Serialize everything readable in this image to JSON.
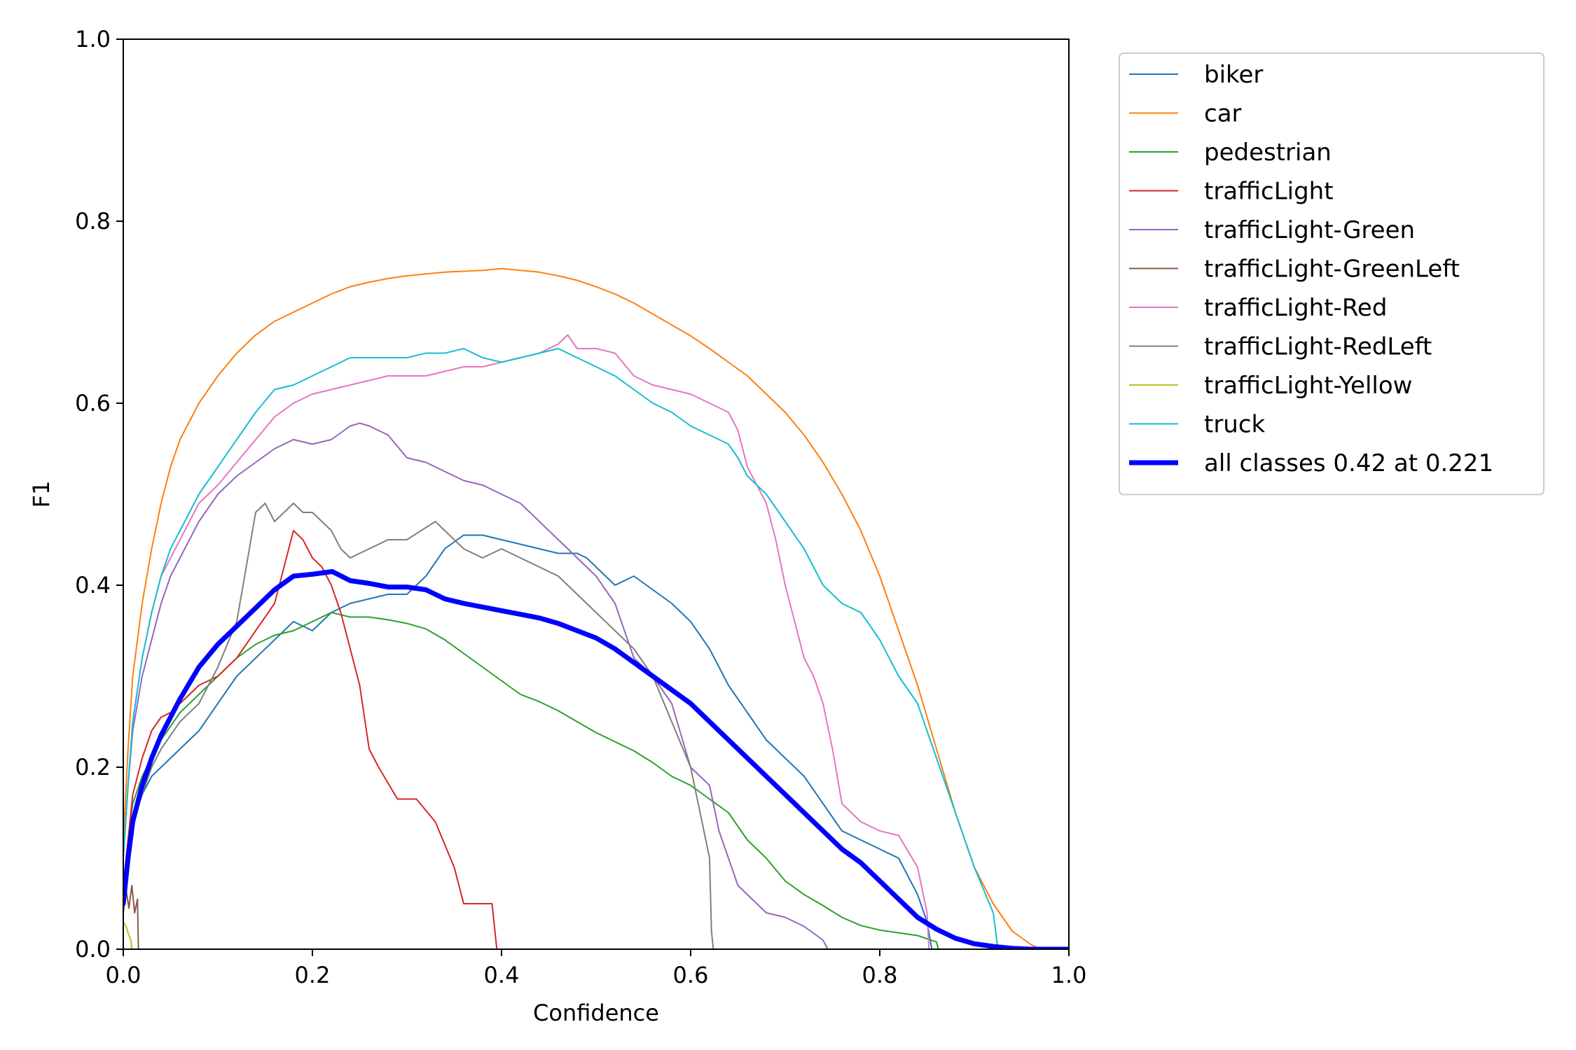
{
  "chart_data": {
    "type": "line",
    "title": "",
    "xlabel": "Confidence",
    "ylabel": "F1",
    "xlim": [
      0,
      1
    ],
    "ylim": [
      0,
      1
    ],
    "xticks": [
      "0.0",
      "0.2",
      "0.4",
      "0.6",
      "0.8",
      "1.0"
    ],
    "yticks": [
      "0.0",
      "0.2",
      "0.4",
      "0.6",
      "0.8",
      "1.0"
    ],
    "grid": false,
    "legend_position": "outside-right",
    "series": [
      {
        "name": "biker",
        "color": "#1f77b4",
        "width": 2,
        "x": [
          0.0,
          0.005,
          0.01,
          0.02,
          0.03,
          0.04,
          0.05,
          0.06,
          0.08,
          0.1,
          0.12,
          0.14,
          0.16,
          0.18,
          0.2,
          0.22,
          0.24,
          0.26,
          0.28,
          0.3,
          0.32,
          0.34,
          0.36,
          0.38,
          0.4,
          0.42,
          0.44,
          0.46,
          0.48,
          0.49,
          0.52,
          0.54,
          0.56,
          0.58,
          0.6,
          0.62,
          0.64,
          0.66,
          0.68,
          0.7,
          0.72,
          0.74,
          0.76,
          0.78,
          0.8,
          0.82,
          0.84,
          0.85,
          0.855
        ],
        "y": [
          0.07,
          0.11,
          0.14,
          0.17,
          0.19,
          0.2,
          0.21,
          0.22,
          0.24,
          0.27,
          0.3,
          0.32,
          0.34,
          0.36,
          0.35,
          0.37,
          0.38,
          0.385,
          0.39,
          0.39,
          0.41,
          0.44,
          0.455,
          0.455,
          0.45,
          0.445,
          0.44,
          0.435,
          0.435,
          0.43,
          0.4,
          0.41,
          0.395,
          0.38,
          0.36,
          0.33,
          0.29,
          0.26,
          0.23,
          0.21,
          0.19,
          0.16,
          0.13,
          0.12,
          0.11,
          0.1,
          0.06,
          0.03,
          0.0
        ]
      },
      {
        "name": "car",
        "color": "#ff7f0e",
        "width": 2,
        "x": [
          0.0,
          0.005,
          0.01,
          0.02,
          0.03,
          0.04,
          0.05,
          0.06,
          0.08,
          0.1,
          0.12,
          0.14,
          0.16,
          0.18,
          0.2,
          0.22,
          0.24,
          0.26,
          0.28,
          0.3,
          0.32,
          0.34,
          0.36,
          0.38,
          0.4,
          0.42,
          0.44,
          0.46,
          0.48,
          0.5,
          0.52,
          0.54,
          0.56,
          0.58,
          0.6,
          0.62,
          0.64,
          0.66,
          0.68,
          0.7,
          0.72,
          0.74,
          0.76,
          0.78,
          0.8,
          0.82,
          0.84,
          0.86,
          0.88,
          0.9,
          0.92,
          0.94,
          0.96,
          0.97,
          1.0
        ],
        "y": [
          0.12,
          0.22,
          0.3,
          0.38,
          0.44,
          0.49,
          0.53,
          0.56,
          0.6,
          0.63,
          0.655,
          0.675,
          0.69,
          0.7,
          0.71,
          0.72,
          0.728,
          0.733,
          0.737,
          0.74,
          0.742,
          0.744,
          0.745,
          0.746,
          0.748,
          0.746,
          0.744,
          0.74,
          0.735,
          0.728,
          0.72,
          0.71,
          0.698,
          0.686,
          0.674,
          0.66,
          0.645,
          0.63,
          0.61,
          0.59,
          0.565,
          0.535,
          0.5,
          0.46,
          0.41,
          0.35,
          0.29,
          0.22,
          0.15,
          0.09,
          0.05,
          0.02,
          0.005,
          0.0,
          0.0
        ]
      },
      {
        "name": "pedestrian",
        "color": "#2ca02c",
        "width": 2,
        "x": [
          0.0,
          0.005,
          0.01,
          0.02,
          0.03,
          0.04,
          0.05,
          0.06,
          0.08,
          0.1,
          0.12,
          0.14,
          0.16,
          0.18,
          0.2,
          0.22,
          0.24,
          0.26,
          0.28,
          0.3,
          0.32,
          0.34,
          0.36,
          0.38,
          0.4,
          0.42,
          0.44,
          0.46,
          0.48,
          0.5,
          0.52,
          0.54,
          0.56,
          0.58,
          0.6,
          0.62,
          0.64,
          0.66,
          0.68,
          0.7,
          0.72,
          0.74,
          0.76,
          0.78,
          0.8,
          0.82,
          0.84,
          0.86,
          0.862
        ],
        "y": [
          0.07,
          0.12,
          0.16,
          0.19,
          0.21,
          0.23,
          0.245,
          0.26,
          0.28,
          0.3,
          0.32,
          0.335,
          0.345,
          0.35,
          0.36,
          0.37,
          0.365,
          0.365,
          0.362,
          0.358,
          0.352,
          0.34,
          0.325,
          0.31,
          0.295,
          0.28,
          0.272,
          0.262,
          0.25,
          0.238,
          0.228,
          0.218,
          0.205,
          0.19,
          0.18,
          0.165,
          0.15,
          0.12,
          0.1,
          0.075,
          0.06,
          0.048,
          0.035,
          0.026,
          0.021,
          0.018,
          0.015,
          0.008,
          0.0
        ]
      },
      {
        "name": "trafficLight",
        "color": "#d62728",
        "width": 2,
        "x": [
          0.0,
          0.005,
          0.01,
          0.02,
          0.03,
          0.04,
          0.05,
          0.06,
          0.08,
          0.1,
          0.12,
          0.14,
          0.16,
          0.17,
          0.18,
          0.19,
          0.2,
          0.21,
          0.22,
          0.23,
          0.24,
          0.25,
          0.26,
          0.27,
          0.29,
          0.31,
          0.33,
          0.35,
          0.36,
          0.37,
          0.39,
          0.392,
          0.395
        ],
        "y": [
          0.07,
          0.12,
          0.17,
          0.21,
          0.24,
          0.255,
          0.26,
          0.27,
          0.29,
          0.3,
          0.32,
          0.35,
          0.38,
          0.42,
          0.46,
          0.45,
          0.43,
          0.42,
          0.4,
          0.37,
          0.33,
          0.29,
          0.22,
          0.2,
          0.165,
          0.165,
          0.14,
          0.09,
          0.05,
          0.05,
          0.05,
          0.03,
          0.0
        ]
      },
      {
        "name": "trafficLight-Green",
        "color": "#9467bd",
        "width": 2,
        "x": [
          0.0,
          0.005,
          0.01,
          0.02,
          0.03,
          0.04,
          0.05,
          0.06,
          0.08,
          0.1,
          0.12,
          0.14,
          0.16,
          0.18,
          0.2,
          0.22,
          0.24,
          0.25,
          0.26,
          0.28,
          0.3,
          0.32,
          0.34,
          0.36,
          0.38,
          0.4,
          0.42,
          0.44,
          0.46,
          0.48,
          0.5,
          0.52,
          0.54,
          0.56,
          0.58,
          0.6,
          0.62,
          0.63,
          0.64,
          0.65,
          0.66,
          0.67,
          0.68,
          0.7,
          0.72,
          0.74,
          0.745
        ],
        "y": [
          0.1,
          0.18,
          0.24,
          0.3,
          0.34,
          0.38,
          0.41,
          0.43,
          0.47,
          0.5,
          0.52,
          0.535,
          0.55,
          0.56,
          0.555,
          0.56,
          0.575,
          0.578,
          0.575,
          0.565,
          0.54,
          0.535,
          0.525,
          0.515,
          0.51,
          0.5,
          0.49,
          0.47,
          0.45,
          0.43,
          0.41,
          0.38,
          0.32,
          0.3,
          0.27,
          0.2,
          0.18,
          0.13,
          0.1,
          0.07,
          0.06,
          0.05,
          0.04,
          0.035,
          0.025,
          0.01,
          0.0
        ]
      },
      {
        "name": "trafficLight-GreenLeft",
        "color": "#8c564b",
        "width": 2,
        "x": [
          0.0,
          0.003,
          0.006,
          0.009,
          0.012,
          0.015,
          0.016
        ],
        "y": [
          0.04,
          0.065,
          0.045,
          0.07,
          0.04,
          0.055,
          0.0
        ]
      },
      {
        "name": "trafficLight-Red",
        "color": "#e377c2",
        "width": 2,
        "x": [
          0.0,
          0.005,
          0.01,
          0.02,
          0.03,
          0.04,
          0.05,
          0.06,
          0.08,
          0.1,
          0.12,
          0.14,
          0.16,
          0.18,
          0.2,
          0.22,
          0.24,
          0.26,
          0.28,
          0.3,
          0.32,
          0.34,
          0.36,
          0.38,
          0.4,
          0.42,
          0.44,
          0.46,
          0.47,
          0.48,
          0.5,
          0.52,
          0.54,
          0.56,
          0.58,
          0.6,
          0.62,
          0.64,
          0.65,
          0.66,
          0.67,
          0.68,
          0.69,
          0.7,
          0.71,
          0.72,
          0.73,
          0.74,
          0.75,
          0.76,
          0.78,
          0.8,
          0.82,
          0.84,
          0.85,
          0.852
        ],
        "y": [
          0.1,
          0.18,
          0.25,
          0.32,
          0.37,
          0.41,
          0.43,
          0.45,
          0.49,
          0.51,
          0.535,
          0.56,
          0.585,
          0.6,
          0.61,
          0.615,
          0.62,
          0.625,
          0.63,
          0.63,
          0.63,
          0.635,
          0.64,
          0.64,
          0.645,
          0.65,
          0.655,
          0.665,
          0.675,
          0.66,
          0.66,
          0.655,
          0.63,
          0.62,
          0.615,
          0.61,
          0.6,
          0.59,
          0.57,
          0.53,
          0.51,
          0.49,
          0.45,
          0.4,
          0.36,
          0.32,
          0.3,
          0.27,
          0.22,
          0.16,
          0.14,
          0.13,
          0.125,
          0.09,
          0.04,
          0.0
        ]
      },
      {
        "name": "trafficLight-RedLeft",
        "color": "#7f7f7f",
        "width": 2,
        "x": [
          0.0,
          0.005,
          0.01,
          0.02,
          0.03,
          0.04,
          0.06,
          0.08,
          0.1,
          0.12,
          0.13,
          0.14,
          0.15,
          0.16,
          0.17,
          0.18,
          0.19,
          0.2,
          0.21,
          0.22,
          0.23,
          0.24,
          0.26,
          0.28,
          0.3,
          0.33,
          0.34,
          0.36,
          0.38,
          0.4,
          0.42,
          0.44,
          0.46,
          0.48,
          0.5,
          0.52,
          0.54,
          0.56,
          0.58,
          0.6,
          0.61,
          0.62,
          0.622,
          0.624
        ],
        "y": [
          0.07,
          0.11,
          0.14,
          0.17,
          0.2,
          0.22,
          0.25,
          0.27,
          0.31,
          0.36,
          0.42,
          0.48,
          0.49,
          0.47,
          0.48,
          0.49,
          0.48,
          0.48,
          0.47,
          0.46,
          0.44,
          0.43,
          0.44,
          0.45,
          0.45,
          0.47,
          0.46,
          0.44,
          0.43,
          0.44,
          0.43,
          0.42,
          0.41,
          0.39,
          0.37,
          0.35,
          0.33,
          0.3,
          0.25,
          0.2,
          0.15,
          0.1,
          0.02,
          0.0
        ]
      },
      {
        "name": "trafficLight-Yellow",
        "color": "#bcbd22",
        "width": 2,
        "x": [
          0.0,
          0.003,
          0.006,
          0.008,
          0.009
        ],
        "y": [
          0.03,
          0.025,
          0.015,
          0.01,
          0.0
        ]
      },
      {
        "name": "truck",
        "color": "#17becf",
        "width": 2,
        "x": [
          0.0,
          0.005,
          0.01,
          0.02,
          0.03,
          0.04,
          0.05,
          0.06,
          0.08,
          0.1,
          0.12,
          0.14,
          0.16,
          0.18,
          0.2,
          0.22,
          0.24,
          0.26,
          0.28,
          0.3,
          0.32,
          0.34,
          0.36,
          0.38,
          0.4,
          0.42,
          0.44,
          0.46,
          0.48,
          0.5,
          0.52,
          0.54,
          0.56,
          0.58,
          0.6,
          0.62,
          0.64,
          0.65,
          0.66,
          0.68,
          0.7,
          0.72,
          0.74,
          0.76,
          0.78,
          0.8,
          0.82,
          0.84,
          0.86,
          0.88,
          0.9,
          0.92,
          0.925
        ],
        "y": [
          0.1,
          0.18,
          0.25,
          0.32,
          0.37,
          0.41,
          0.44,
          0.46,
          0.5,
          0.53,
          0.56,
          0.59,
          0.615,
          0.62,
          0.63,
          0.64,
          0.65,
          0.65,
          0.65,
          0.65,
          0.655,
          0.655,
          0.66,
          0.65,
          0.645,
          0.65,
          0.655,
          0.66,
          0.65,
          0.64,
          0.63,
          0.615,
          0.6,
          0.59,
          0.575,
          0.565,
          0.555,
          0.54,
          0.52,
          0.5,
          0.47,
          0.44,
          0.4,
          0.38,
          0.37,
          0.34,
          0.3,
          0.27,
          0.21,
          0.15,
          0.09,
          0.04,
          0.0
        ]
      },
      {
        "name": "all classes 0.42 at 0.221",
        "color": "#0000ff",
        "width": 7,
        "x": [
          0.0,
          0.005,
          0.01,
          0.02,
          0.03,
          0.04,
          0.05,
          0.06,
          0.08,
          0.1,
          0.12,
          0.14,
          0.16,
          0.18,
          0.2,
          0.221,
          0.24,
          0.26,
          0.28,
          0.3,
          0.32,
          0.34,
          0.36,
          0.38,
          0.4,
          0.42,
          0.44,
          0.46,
          0.48,
          0.5,
          0.52,
          0.54,
          0.56,
          0.58,
          0.6,
          0.62,
          0.64,
          0.66,
          0.68,
          0.7,
          0.72,
          0.74,
          0.76,
          0.78,
          0.8,
          0.82,
          0.84,
          0.86,
          0.88,
          0.9,
          0.92,
          0.94,
          0.96,
          0.98,
          1.0
        ],
        "y": [
          0.05,
          0.1,
          0.14,
          0.18,
          0.21,
          0.235,
          0.255,
          0.275,
          0.31,
          0.335,
          0.355,
          0.375,
          0.395,
          0.41,
          0.412,
          0.415,
          0.405,
          0.402,
          0.398,
          0.398,
          0.395,
          0.385,
          0.38,
          0.376,
          0.372,
          0.368,
          0.364,
          0.358,
          0.35,
          0.342,
          0.33,
          0.315,
          0.3,
          0.285,
          0.27,
          0.25,
          0.23,
          0.21,
          0.19,
          0.17,
          0.15,
          0.13,
          0.11,
          0.095,
          0.075,
          0.055,
          0.035,
          0.022,
          0.012,
          0.006,
          0.003,
          0.001,
          0.0,
          0.0,
          0.0
        ]
      }
    ]
  }
}
